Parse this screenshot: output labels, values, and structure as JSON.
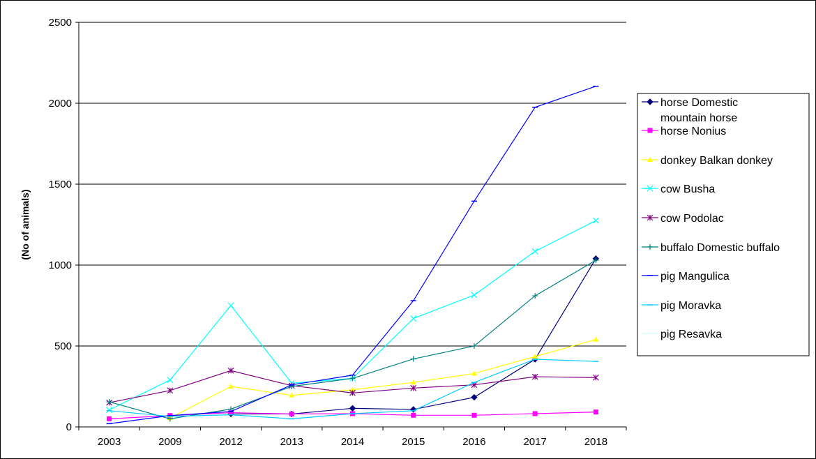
{
  "chart_data": {
    "type": "line",
    "title": "",
    "xlabel": "",
    "ylabel": "(No of animals)",
    "ylim": [
      0,
      2500
    ],
    "yticks": [
      0,
      500,
      1000,
      1500,
      2000,
      2500
    ],
    "grid": "horizontal",
    "legend_position": "right",
    "categories": [
      "2003",
      "2009",
      "2012",
      "2013",
      "2014",
      "2015",
      "2016",
      "2017",
      "2018"
    ],
    "series": [
      {
        "name": "horse Domestic mountain horse",
        "legend_lines": [
          "horse Domestic",
          "mountain horse"
        ],
        "color": "#000080",
        "marker": "diamond",
        "values": [
          null,
          null,
          80,
          80,
          115,
          108,
          183,
          418,
          1040
        ]
      },
      {
        "name": "horse Nonius",
        "legend_lines": [
          "horse Nonius"
        ],
        "color": "#ff00ff",
        "marker": "square",
        "values": [
          50,
          70,
          88,
          80,
          82,
          72,
          72,
          82,
          92
        ]
      },
      {
        "name": "donkey Balkan donkey",
        "legend_lines": [
          "donkey Balkan donkey"
        ],
        "color": "#ffff00",
        "marker": "triangle",
        "values": [
          null,
          55,
          250,
          195,
          230,
          275,
          330,
          435,
          540
        ]
      },
      {
        "name": "cow Busha",
        "legend_lines": [
          "cow Busha"
        ],
        "color": "#00ffff",
        "marker": "x",
        "values": [
          105,
          290,
          750,
          270,
          300,
          670,
          815,
          1085,
          1275
        ]
      },
      {
        "name": "cow Podolac",
        "legend_lines": [
          "cow Podolac"
        ],
        "color": "#800080",
        "marker": "star",
        "values": [
          150,
          225,
          348,
          255,
          210,
          240,
          260,
          310,
          305
        ]
      },
      {
        "name": "buffalo Domestic buffalo",
        "legend_lines": [
          "buffalo Domestic buffalo"
        ],
        "color": "#008080",
        "marker": "plus",
        "values": [
          155,
          50,
          110,
          250,
          300,
          420,
          500,
          810,
          1030
        ]
      },
      {
        "name": "pig Mangulica",
        "legend_lines": [
          "pig  Mangulica"
        ],
        "color": "#0000ff",
        "marker": "dash",
        "values": [
          20,
          70,
          95,
          260,
          320,
          780,
          1395,
          1975,
          2105
        ]
      },
      {
        "name": "pig Moravka",
        "legend_lines": [
          "pig  Moravka"
        ],
        "color": "#00ccff",
        "marker": "dash",
        "values": [
          100,
          65,
          75,
          50,
          82,
          100,
          275,
          418,
          405
        ]
      },
      {
        "name": "pig Resavka",
        "legend_lines": [
          "pig  Resavka"
        ],
        "color": "#ccffff",
        "marker": "none",
        "values": [
          null,
          null,
          null,
          null,
          null,
          null,
          null,
          null,
          null
        ]
      }
    ],
    "extra_series_segments_note": ""
  }
}
